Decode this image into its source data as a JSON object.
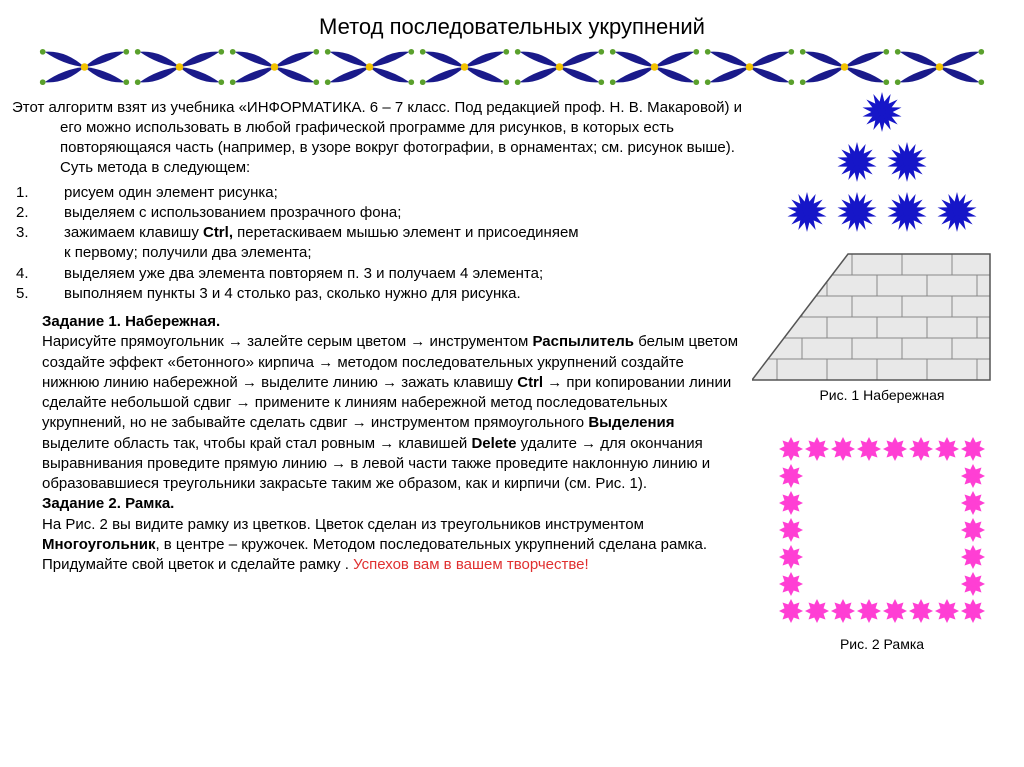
{
  "title": "Метод последовательных укрупнений",
  "ornament": {
    "count": 10,
    "petal_color": "#1a1a8a",
    "center_color": "#f2c200",
    "accent_color": "#5aa02c"
  },
  "intro": {
    "line1": "Этот алгоритм взят из учебника «ИНФОРМАТИКА. 6 – 7 класс. Под редакцией проф. Н. В. Макаровой) и",
    "line2": "его можно использовать в любой графической программе для  рисунков, в которых есть",
    "line3": "повторяющаяся часть (например,  в узоре вокруг фотографии, в орнаментах; см. рисунок выше).",
    "line4": "Суть метода в следующем:"
  },
  "steps": [
    "рисуем один элемент рисунка;",
    "выделяем с использованием прозрачного фона;",
    "зажимаем клавишу |Ctrl,| перетаскиваем мышью элемент и присоединяем\n к первому; получили два элемента;",
    "выделяем уже два элемента повторяем п. 3 и получаем 4 элемента;",
    "выполняем пункты 3 и 4 столько раз, сколько нужно для рисунка."
  ],
  "task1": {
    "heading": "Задание 1. Набережная.",
    "body_parts": [
      {
        "t": "Нарисуйте прямоугольник "
      },
      {
        "a": true
      },
      {
        "t": " залейте серым цветом "
      },
      {
        "a": true
      },
      {
        "t": " инструментом "
      },
      {
        "b": "Распылитель"
      },
      {
        "t": " белым цветом создайте эффект «бетонного» кирпича "
      },
      {
        "a": true
      },
      {
        "t": " методом последовательных укрупнений создайте нижнюю линию набережной "
      },
      {
        "a": true
      },
      {
        "t": " выделите линию "
      },
      {
        "a": true
      },
      {
        "t": " зажать клавишу "
      },
      {
        "b": "Ctrl"
      },
      {
        "t": " "
      },
      {
        "a": true
      },
      {
        "t": " при копировании линии сделайте небольшой сдвиг "
      },
      {
        "a": true
      },
      {
        "t": " примените к линиям набережной метод последовательных укрупнений, но не забывайте сделать сдвиг "
      },
      {
        "a": true
      },
      {
        "t": " инструментом прямоугольного "
      },
      {
        "b": "Выделения"
      },
      {
        "t": " выделите область так, чтобы край стал ровным "
      },
      {
        "a": true
      },
      {
        "t": " клавишей "
      },
      {
        "b": "Delete"
      },
      {
        "t": " удалите "
      },
      {
        "a": true
      },
      {
        "t": " для окончания выравнивания проведите прямую линию "
      },
      {
        "a": true
      },
      {
        "t": " в левой части также проведите наклонную линию и образовавшиеся треугольники закрасьте таким же образом, как и кирпичи (см. Рис. 1)."
      }
    ]
  },
  "task2": {
    "heading": "Задание 2. Рамка.",
    "body_parts": [
      {
        "t": "На Рис. 2 вы видите рамку из цветков. Цветок сделан из треугольников инструментом "
      },
      {
        "b": "Многоугольник"
      },
      {
        "t": ", в центре – кружочек. Методом последовательных укрупнений сделана рамка. Придумайте свой цветок и сделайте рамку . "
      },
      {
        "r": "Успехов вам в вашем творчестве!"
      }
    ]
  },
  "flower_tree": {
    "color": "#1616c8",
    "rows": [
      1,
      2,
      4
    ]
  },
  "fig1": {
    "caption": "Рис. 1 Набережная",
    "brick_fill": "#e8e8e8",
    "brick_stroke": "#888888"
  },
  "fig2": {
    "caption": "Рис. 2  Рамка",
    "flower_color": "#ff3fd4",
    "cols": 8,
    "rows": 7
  }
}
